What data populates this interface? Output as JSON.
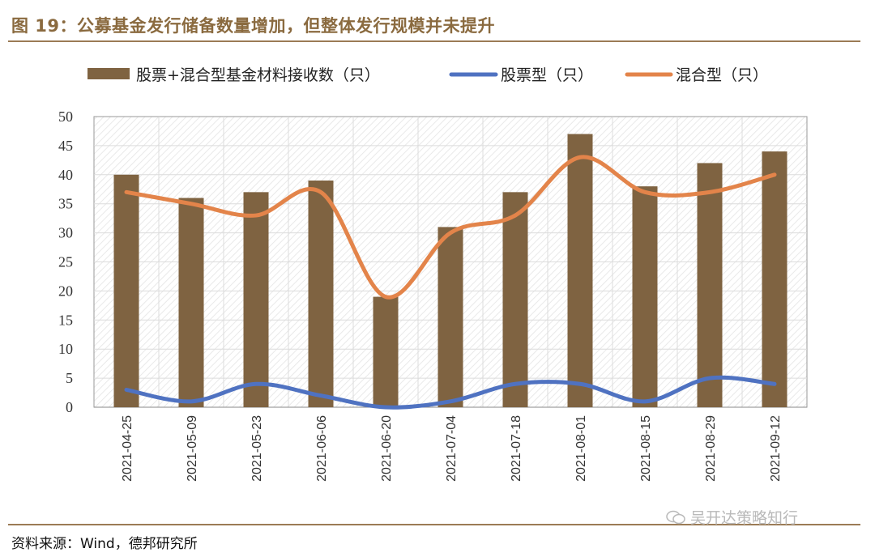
{
  "figure": {
    "title": "图 19：公募基金发行储备数量增加，但整体发行规模并未提升",
    "source": "资料来源：Wind，德邦研究所",
    "watermark": "吴开达策略知行"
  },
  "colors": {
    "bar": "#7f6341",
    "stock_line": "#4f72c1",
    "mixed_line": "#e3844a",
    "accent": "#9b7b55"
  },
  "chart_data": {
    "type": "bar",
    "categories": [
      "2021-04-25",
      "2021-05-09",
      "2021-05-23",
      "2021-06-06",
      "2021-06-20",
      "2021-07-04",
      "2021-07-18",
      "2021-08-01",
      "2021-08-15",
      "2021-08-29",
      "2021-09-12"
    ],
    "series": [
      {
        "name": "股票+混合型基金材料接收数（只）",
        "type": "bar",
        "values": [
          40,
          36,
          37,
          39,
          19,
          31,
          37,
          47,
          38,
          42,
          44
        ]
      },
      {
        "name": "股票型（只）",
        "type": "line",
        "values": [
          3,
          1,
          4,
          2,
          0,
          1,
          4,
          4,
          1,
          5,
          4
        ]
      },
      {
        "name": "混合型（只）",
        "type": "line",
        "values": [
          37,
          35,
          33,
          37,
          19,
          30,
          33,
          43,
          37,
          37,
          40
        ]
      }
    ],
    "yticks": [
      0,
      5,
      10,
      15,
      20,
      25,
      30,
      35,
      40,
      45,
      50
    ],
    "ylim": [
      0,
      50
    ],
    "grid": true,
    "legend": "top"
  }
}
